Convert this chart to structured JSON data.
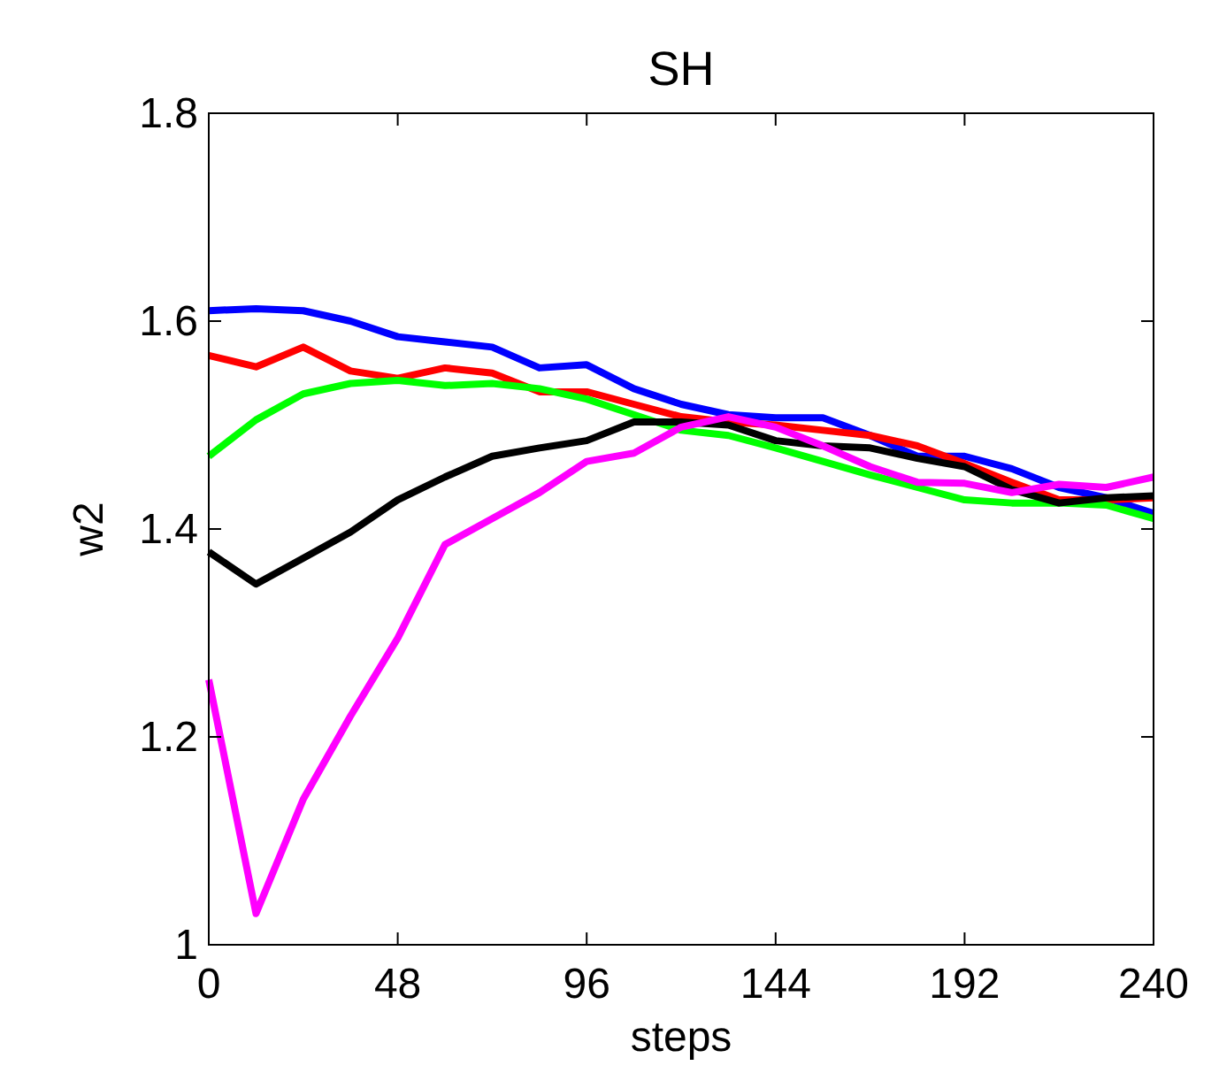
{
  "chart_data": {
    "type": "line",
    "title": "SH",
    "xlabel": "steps",
    "ylabel": "w2",
    "x": [
      0,
      12,
      24,
      36,
      48,
      60,
      72,
      84,
      96,
      108,
      120,
      132,
      144,
      156,
      168,
      180,
      192,
      204,
      216,
      228,
      240
    ],
    "xlim": [
      0,
      240
    ],
    "xticks": [
      0,
      48,
      96,
      144,
      192,
      240
    ],
    "ylim": [
      1,
      1.8
    ],
    "yticks": [
      1,
      1.2,
      1.4,
      1.6,
      1.8
    ],
    "grid": false,
    "marker": "none",
    "line_style": "solid",
    "series": [
      {
        "color": "#0000ff",
        "values": [
          1.61,
          1.612,
          1.61,
          1.6,
          1.585,
          1.58,
          1.575,
          1.555,
          1.558,
          1.535,
          1.52,
          1.51,
          1.507,
          1.507,
          1.49,
          1.47,
          1.47,
          1.458,
          1.44,
          1.43,
          1.415
        ]
      },
      {
        "color": "#ff0000",
        "values": [
          1.567,
          1.556,
          1.575,
          1.552,
          1.545,
          1.555,
          1.55,
          1.532,
          1.532,
          1.52,
          1.508,
          1.503,
          1.5,
          1.495,
          1.49,
          1.48,
          1.463,
          1.445,
          1.428,
          1.428,
          1.43
        ]
      },
      {
        "color": "#00ff00",
        "values": [
          1.47,
          1.505,
          1.53,
          1.54,
          1.543,
          1.538,
          1.54,
          1.535,
          1.525,
          1.51,
          1.495,
          1.49,
          1.478,
          1.465,
          1.452,
          1.44,
          1.428,
          1.425,
          1.425,
          1.423,
          1.41
        ]
      },
      {
        "color": "#000000",
        "values": [
          1.378,
          1.347,
          1.372,
          1.397,
          1.428,
          1.45,
          1.47,
          1.478,
          1.485,
          1.503,
          1.503,
          1.5,
          1.485,
          1.48,
          1.478,
          1.468,
          1.46,
          1.438,
          1.425,
          1.43,
          1.432
        ]
      },
      {
        "color": "#ff00ff",
        "values": [
          1.255,
          1.03,
          1.14,
          1.22,
          1.295,
          1.385,
          1.41,
          1.435,
          1.465,
          1.473,
          1.498,
          1.508,
          1.498,
          1.48,
          1.46,
          1.445,
          1.444,
          1.435,
          1.443,
          1.44,
          1.45
        ]
      }
    ]
  }
}
